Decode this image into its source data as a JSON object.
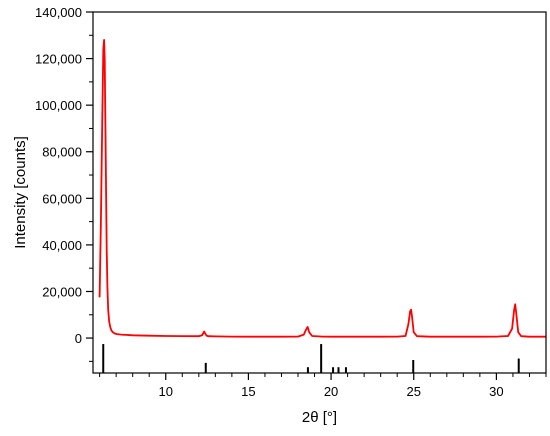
{
  "chart_data": {
    "type": "line",
    "title": "",
    "xlabel": "2θ [°]",
    "ylabel": "Intensity [counts]",
    "xlim": [
      5.6,
      33.0
    ],
    "ylim": [
      -15000,
      140000
    ],
    "x_ticks": [
      10,
      15,
      20,
      25,
      30
    ],
    "x_tick_labels": [
      "10",
      "15",
      "20",
      "25",
      "30"
    ],
    "y_ticks": [
      0,
      20000,
      40000,
      60000,
      80000,
      100000,
      120000,
      140000
    ],
    "y_tick_labels": [
      "0",
      "20,000",
      "40,000",
      "60,000",
      "80,000",
      "100,000",
      "120,000",
      "140,000"
    ],
    "grid": false,
    "series": [
      {
        "color": "#ff0000",
        "x": [
          6.0,
          6.08,
          6.16,
          6.22,
          6.27,
          6.31,
          6.35,
          6.39,
          6.43,
          6.47,
          6.52,
          6.58,
          6.65,
          6.72,
          6.8,
          6.9,
          7.05,
          7.3,
          7.6,
          8.0,
          9.0,
          10.0,
          11.0,
          12.0,
          12.2,
          12.32,
          12.4,
          12.48,
          12.6,
          13.0,
          14.0,
          15.0,
          16.0,
          17.0,
          18.0,
          18.35,
          18.48,
          18.58,
          18.68,
          18.85,
          19.5,
          20.0,
          21.0,
          22.0,
          23.0,
          24.0,
          24.5,
          24.68,
          24.78,
          24.84,
          24.9,
          25.0,
          25.2,
          26.0,
          27.0,
          28.0,
          29.0,
          30.0,
          30.7,
          30.95,
          31.07,
          31.14,
          31.21,
          31.32,
          31.5,
          32.0,
          33.0
        ],
        "y": [
          17500,
          50000,
          95000,
          124000,
          128000,
          120000,
          92000,
          62000,
          38000,
          22000,
          12000,
          7000,
          4500,
          3200,
          2500,
          2000,
          1700,
          1500,
          1350,
          1200,
          1000,
          900,
          850,
          800,
          1200,
          2800,
          1800,
          1000,
          800,
          700,
          650,
          600,
          600,
          600,
          650,
          1500,
          3500,
          4800,
          2500,
          900,
          650,
          600,
          600,
          600,
          600,
          650,
          900,
          6000,
          11500,
          12200,
          9000,
          2500,
          800,
          600,
          600,
          600,
          600,
          650,
          900,
          4000,
          12000,
          14500,
          10000,
          2500,
          800,
          600,
          600
        ]
      }
    ],
    "reference_lines": {
      "color": "#000000",
      "x": [
        6.22,
        12.42,
        18.6,
        19.4,
        20.12,
        20.45,
        20.9,
        24.97,
        31.35
      ],
      "relative_intensity": [
        1.0,
        0.35,
        0.2,
        1.0,
        0.2,
        0.2,
        0.2,
        0.45,
        0.5
      ]
    }
  }
}
